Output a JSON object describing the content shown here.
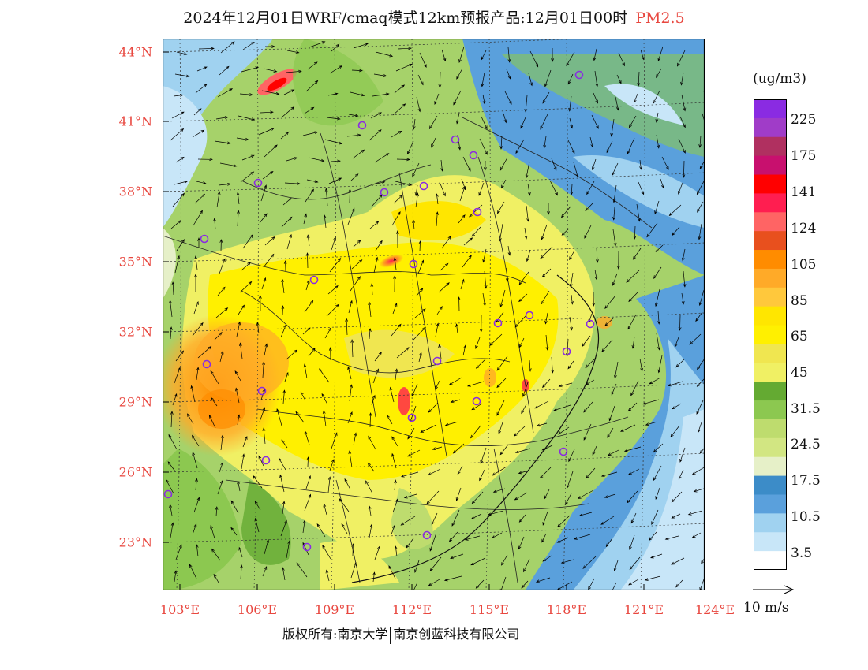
{
  "title": {
    "main": "2024年12月01日WRF/cmaq模式12km预报产品:12月01日00时",
    "species": "PM2.5",
    "species_color": "#e8473f"
  },
  "map": {
    "lat_labels": [
      "44°N",
      "41°N",
      "38°N",
      "35°N",
      "32°N",
      "29°N",
      "26°N",
      "23°N"
    ],
    "lon_labels": [
      "103°E",
      "106°E",
      "109°E",
      "112°E",
      "115°E",
      "118°E",
      "121°E",
      "124°E"
    ],
    "label_color": "#e8473f",
    "station_marker_color": "#8a2be2",
    "vector_color": "#000000"
  },
  "colorbar": {
    "units": "(ug/m3)",
    "labels": [
      "225",
      "175",
      "141",
      "124",
      "105",
      "85",
      "65",
      "45",
      "31.5",
      "24.5",
      "17.5",
      "10.5",
      "3.5"
    ],
    "colors_top_to_bottom": [
      "#8a2be2",
      "#a03cc8",
      "#b03060",
      "#c8106e",
      "#ff0000",
      "#ff1e50",
      "#ff6464",
      "#e8501e",
      "#ff8c00",
      "#ffaa28",
      "#ffc83c",
      "#ffe600",
      "#fff000",
      "#f0e650",
      "#f0f064",
      "#64aa32",
      "#8cc850",
      "#bedc6e",
      "#d2e682",
      "#e6f0c8",
      "#3c8cc8",
      "#5aa0dc",
      "#a0d2f0",
      "#c8e6f8",
      "#ffffff"
    ]
  },
  "reference_vector": {
    "label": "10 m/s"
  },
  "footer": {
    "left": "版权所有:南京大学",
    "right": "南京创蓝科技有限公司"
  }
}
